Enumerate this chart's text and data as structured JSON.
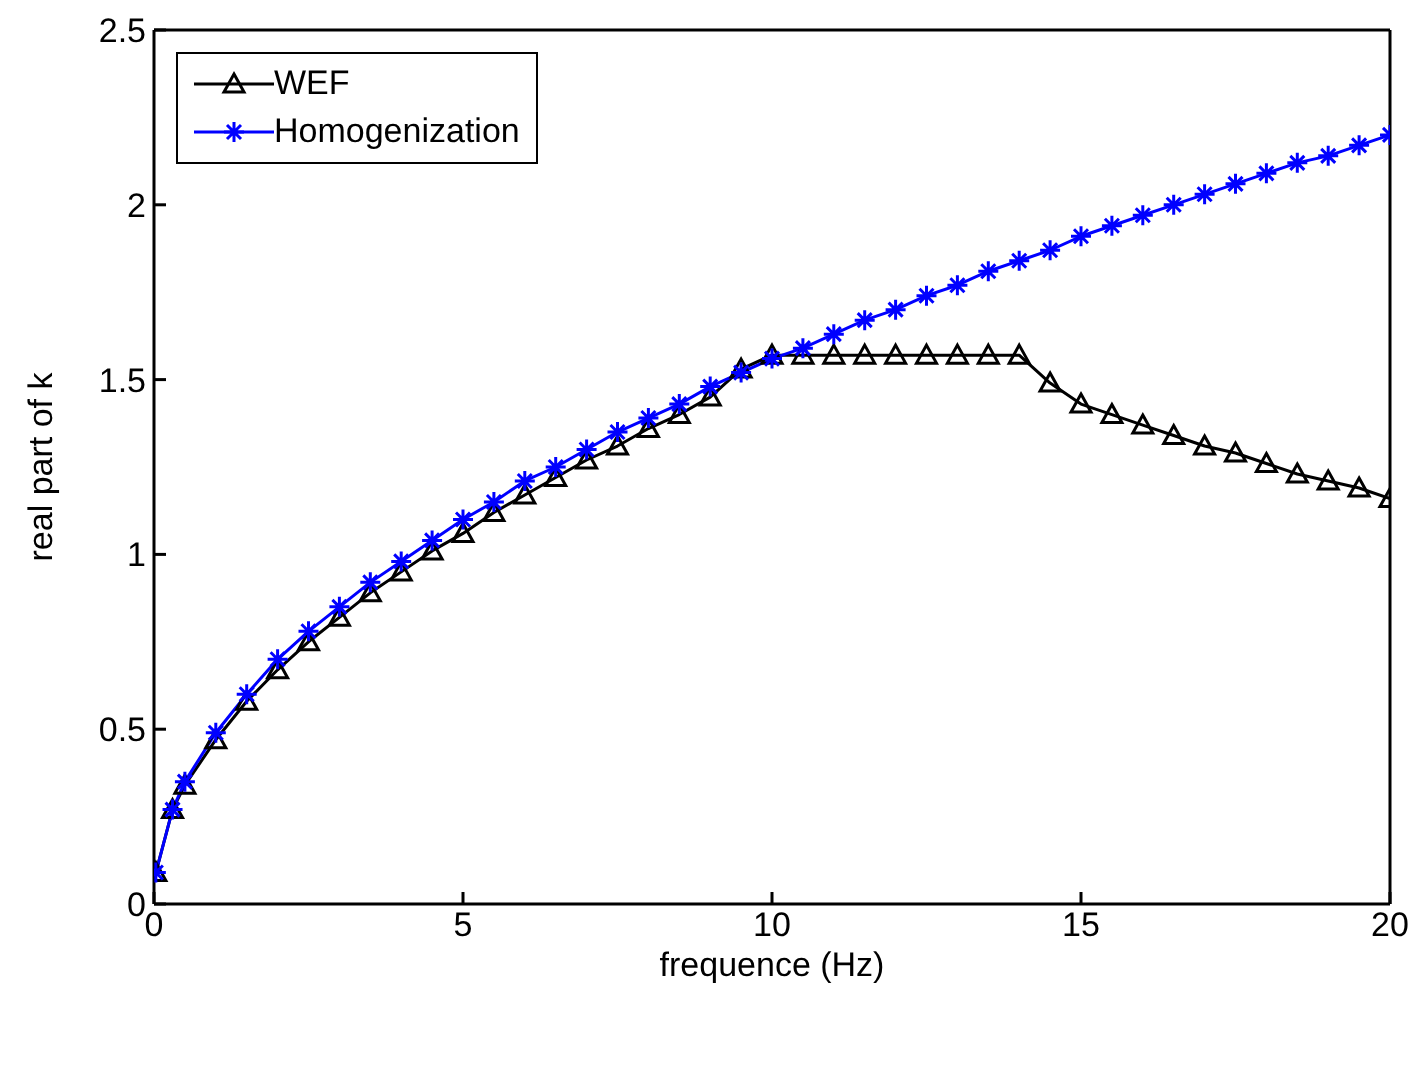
{
  "chart_data": {
    "type": "line",
    "xlabel": "frequence (Hz)",
    "ylabel": "real part of k",
    "x": [
      0.03,
      0.3,
      0.5,
      1,
      1.5,
      2,
      2.5,
      3,
      3.5,
      4,
      4.5,
      5,
      5.5,
      6,
      6.5,
      7,
      7.5,
      8,
      8.5,
      9,
      9.5,
      10,
      10.5,
      11,
      11.5,
      12,
      12.5,
      13,
      13.5,
      14,
      14.5,
      15,
      15.5,
      16,
      16.5,
      17,
      17.5,
      18,
      18.5,
      19,
      19.5,
      20
    ],
    "series": [
      {
        "name": "WEF",
        "color": "#000000",
        "marker": "triangle",
        "values": [
          0.09,
          0.27,
          0.34,
          0.47,
          0.58,
          0.67,
          0.75,
          0.82,
          0.89,
          0.95,
          1.01,
          1.06,
          1.12,
          1.17,
          1.22,
          1.27,
          1.31,
          1.36,
          1.4,
          1.45,
          1.53,
          1.57,
          1.57,
          1.57,
          1.57,
          1.57,
          1.57,
          1.57,
          1.57,
          1.57,
          1.49,
          1.43,
          1.4,
          1.37,
          1.34,
          1.31,
          1.29,
          1.26,
          1.23,
          1.21,
          1.19,
          1.16
        ]
      },
      {
        "name": "Homogenization",
        "color": "#0000ff",
        "marker": "cross",
        "values": [
          0.09,
          0.27,
          0.35,
          0.49,
          0.6,
          0.7,
          0.78,
          0.85,
          0.92,
          0.98,
          1.04,
          1.1,
          1.15,
          1.21,
          1.25,
          1.3,
          1.35,
          1.39,
          1.43,
          1.48,
          1.52,
          1.56,
          1.59,
          1.63,
          1.67,
          1.7,
          1.74,
          1.77,
          1.81,
          1.84,
          1.87,
          1.91,
          1.94,
          1.97,
          2.0,
          2.03,
          2.06,
          2.09,
          2.12,
          2.14,
          2.17,
          2.2
        ]
      }
    ],
    "xlim": [
      0,
      20
    ],
    "xticks": [
      0,
      5,
      10,
      15,
      20
    ],
    "ylim": [
      0,
      2.5
    ],
    "yticks": [
      0,
      0.5,
      1,
      1.5,
      2,
      2.5
    ],
    "grid": false,
    "legend": "top left",
    "line_style": "solid"
  }
}
